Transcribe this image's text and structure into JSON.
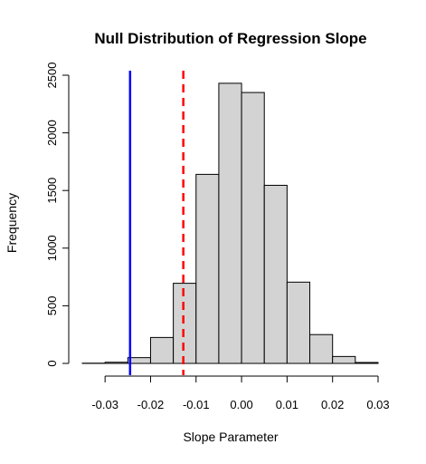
{
  "chart_data": {
    "type": "histogram",
    "title": "Null Distribution of Regression Slope",
    "xlabel": "Slope Parameter",
    "ylabel": "Frequency",
    "xlim": [
      -0.035,
      0.03
    ],
    "ylim": [
      0,
      2500
    ],
    "xticks": [
      -0.03,
      -0.02,
      -0.01,
      0.0,
      0.01,
      0.02,
      0.03
    ],
    "xtick_labels": [
      "-0.03",
      "-0.02",
      "-0.01",
      "0.00",
      "0.01",
      "0.02",
      "0.03"
    ],
    "yticks": [
      0,
      500,
      1000,
      1500,
      2000,
      2500
    ],
    "ytick_labels": [
      "0",
      "500",
      "1000",
      "1500",
      "2000",
      "2500"
    ],
    "bins": [
      {
        "x0": -0.035,
        "x1": -0.03,
        "count": 2
      },
      {
        "x0": -0.03,
        "x1": -0.025,
        "count": 10
      },
      {
        "x0": -0.025,
        "x1": -0.02,
        "count": 50
      },
      {
        "x0": -0.02,
        "x1": -0.015,
        "count": 225
      },
      {
        "x0": -0.015,
        "x1": -0.01,
        "count": 695
      },
      {
        "x0": -0.01,
        "x1": -0.005,
        "count": 1640
      },
      {
        "x0": -0.005,
        "x1": 0.0,
        "count": 2430
      },
      {
        "x0": 0.0,
        "x1": 0.005,
        "count": 2350
      },
      {
        "x0": 0.005,
        "x1": 0.01,
        "count": 1545
      },
      {
        "x0": 0.01,
        "x1": 0.015,
        "count": 705
      },
      {
        "x0": 0.015,
        "x1": 0.02,
        "count": 250
      },
      {
        "x0": 0.02,
        "x1": 0.025,
        "count": 60
      },
      {
        "x0": 0.025,
        "x1": 0.03,
        "count": 8
      }
    ],
    "vlines": [
      {
        "x": -0.0245,
        "color": "#0000ff",
        "style": "solid"
      },
      {
        "x": -0.0128,
        "color": "#ff0000",
        "style": "dashed"
      }
    ],
    "grid": false,
    "bar_fill": "#d3d3d3"
  }
}
